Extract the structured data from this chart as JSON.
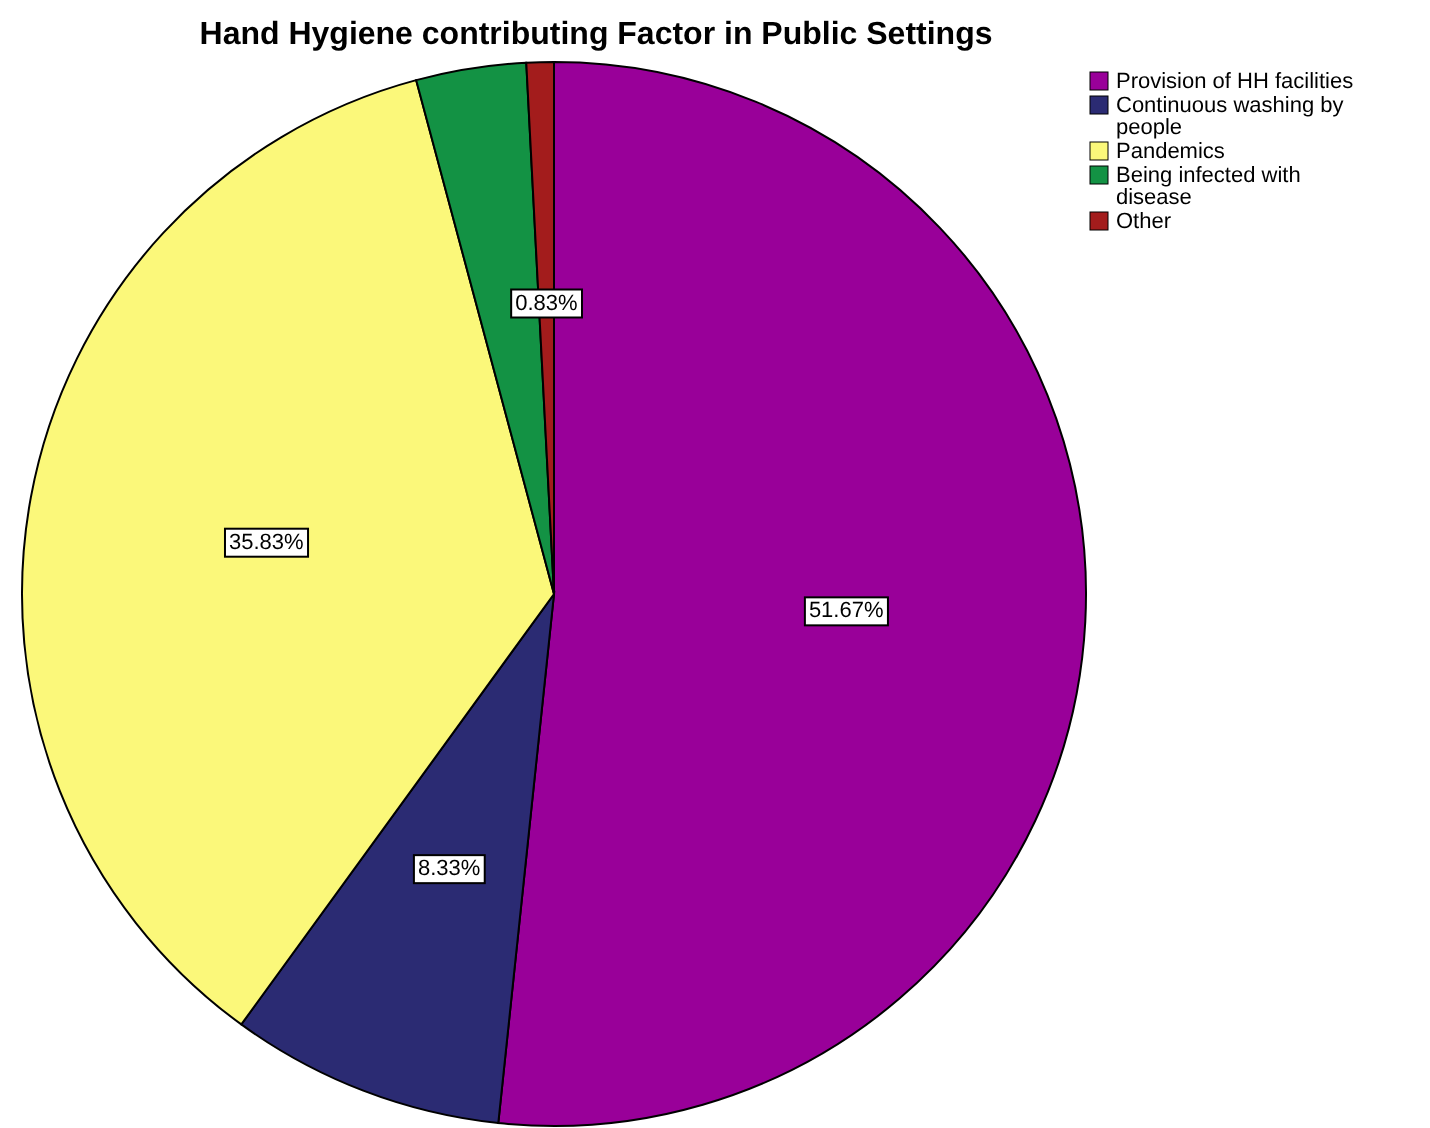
{
  "chart_data": {
    "type": "pie",
    "title": "Hand Hygiene contributing Factor in Public Settings",
    "categories": [
      "Provision of HH facilities",
      "Continuous washing by people",
      "Pandemics",
      "Being infected with disease",
      "Other"
    ],
    "values": [
      51.67,
      8.33,
      35.83,
      3.34,
      0.83
    ],
    "colors": [
      "#990099",
      "#2b2b73",
      "#fbf87a",
      "#139244",
      "#a31c1c"
    ],
    "value_labels": [
      "51.67%",
      "8.33%",
      "35.83%",
      null,
      "0.83%"
    ],
    "legend": "top right"
  }
}
